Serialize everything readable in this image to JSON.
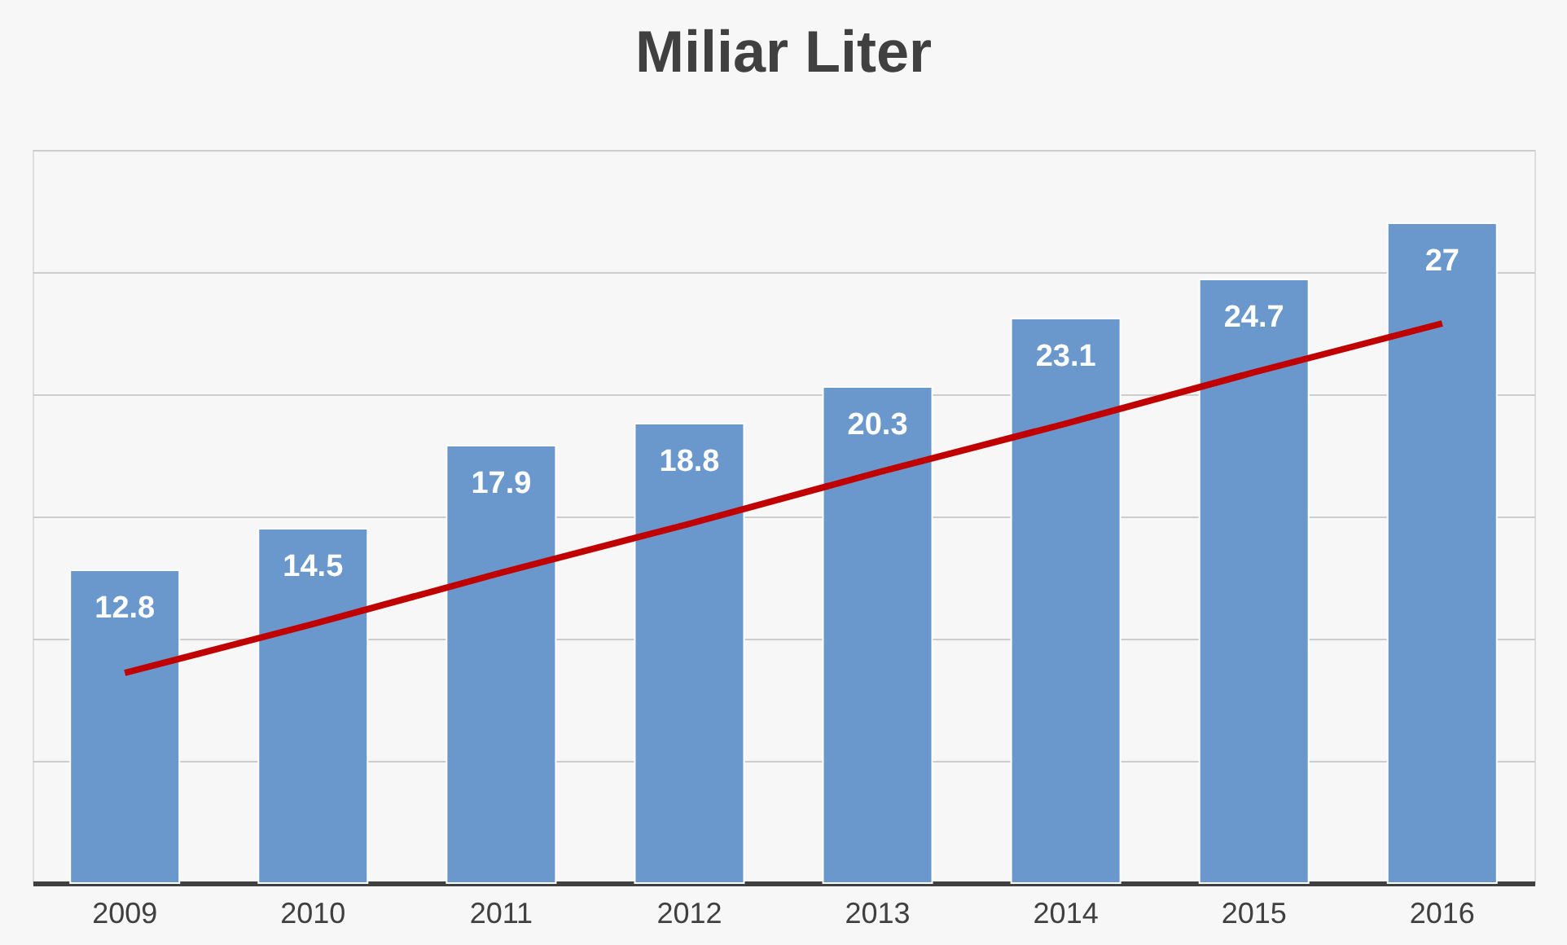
{
  "chart_data": {
    "type": "bar",
    "title": "Miliar Liter",
    "categories": [
      "2009",
      "2010",
      "2011",
      "2012",
      "2013",
      "2014",
      "2015",
      "2016"
    ],
    "series": [
      {
        "color": "#6a98cc",
        "values": [
          12.8,
          14.5,
          17.9,
          18.8,
          20.3,
          23.1,
          24.7,
          27
        ],
        "value_labels": [
          "12.8",
          "14.5",
          "17.9",
          "18.8",
          "20.3",
          "23.1",
          "24.7",
          "27"
        ]
      },
      {
        "type": "line",
        "color": "#c00000",
        "values": [
          8.6,
          10.6,
          12.7,
          14.7,
          16.8,
          18.8,
          20.9,
          22.9
        ]
      }
    ],
    "ylim": [
      0,
      30
    ],
    "yticks": [
      {
        "value": 0,
        "label": null
      },
      {
        "value": 5,
        "label": null
      },
      {
        "value": 10,
        "label": null
      },
      {
        "value": 15,
        "label": null
      },
      {
        "value": 20,
        "label": null
      },
      {
        "value": 25,
        "label": null
      },
      {
        "value": 30,
        "label": null
      }
    ],
    "tick_labels": "x",
    "grid": "y",
    "line_style": "solid",
    "marker": "none"
  }
}
